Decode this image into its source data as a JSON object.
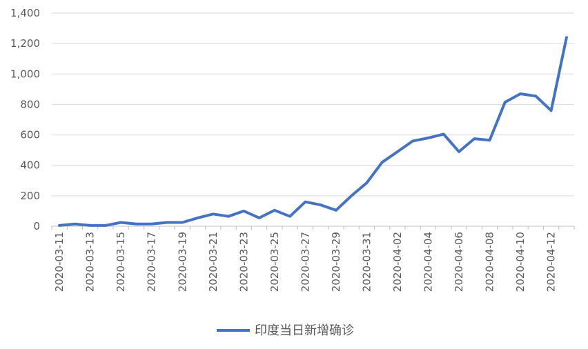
{
  "chart_data": {
    "type": "line",
    "title": "",
    "xlabel": "",
    "ylabel": "",
    "ylim": [
      0,
      1400
    ],
    "yticks": [
      0,
      200,
      400,
      600,
      800,
      1000,
      1200,
      1400
    ],
    "ytick_labels": [
      "0",
      "200",
      "400",
      "600",
      "800",
      "1,000",
      "1,200",
      "1,400"
    ],
    "grid": "horizontal",
    "legend_position": "bottom",
    "x": [
      "2020-03-11",
      "2020-03-12",
      "2020-03-13",
      "2020-03-14",
      "2020-03-15",
      "2020-03-16",
      "2020-03-17",
      "2020-03-18",
      "2020-03-19",
      "2020-03-20",
      "2020-03-21",
      "2020-03-22",
      "2020-03-23",
      "2020-03-24",
      "2020-03-25",
      "2020-03-26",
      "2020-03-27",
      "2020-03-28",
      "2020-03-29",
      "2020-03-30",
      "2020-03-31",
      "2020-04-01",
      "2020-04-02",
      "2020-04-03",
      "2020-04-04",
      "2020-04-05",
      "2020-04-06",
      "2020-04-07",
      "2020-04-08",
      "2020-04-09",
      "2020-04-10",
      "2020-04-11",
      "2020-04-12",
      "2020-04-13"
    ],
    "xtick_labels": [
      "2020-03-11",
      "2020-03-13",
      "2020-03-15",
      "2020-03-17",
      "2020-03-19",
      "2020-03-21",
      "2020-03-23",
      "2020-03-25",
      "2020-03-27",
      "2020-03-29",
      "2020-03-31",
      "2020-04-02",
      "2020-04-04",
      "2020-04-06",
      "2020-04-08",
      "2020-04-10",
      "2020-04-12"
    ],
    "series": [
      {
        "name": "印度当日新增确诊",
        "color": "#4472C4",
        "values": [
          5,
          15,
          5,
          5,
          25,
          15,
          15,
          25,
          25,
          55,
          80,
          65,
          100,
          55,
          105,
          65,
          160,
          140,
          105,
          200,
          285,
          420,
          490,
          560,
          580,
          605,
          490,
          575,
          565,
          815,
          870,
          855,
          760,
          1240
        ]
      }
    ]
  }
}
